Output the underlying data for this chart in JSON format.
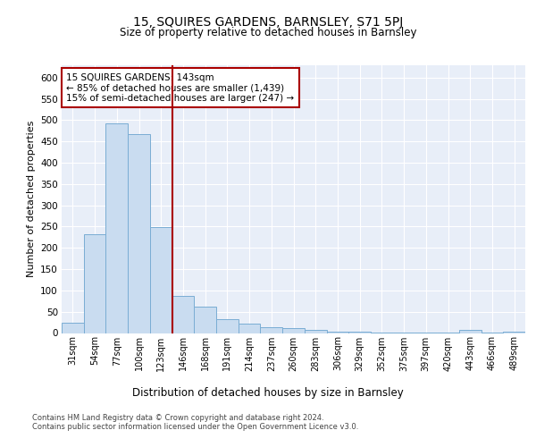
{
  "title": "15, SQUIRES GARDENS, BARNSLEY, S71 5PJ",
  "subtitle": "Size of property relative to detached houses in Barnsley",
  "xlabel": "Distribution of detached houses by size in Barnsley",
  "ylabel": "Number of detached properties",
  "bar_labels": [
    "31sqm",
    "54sqm",
    "77sqm",
    "100sqm",
    "123sqm",
    "146sqm",
    "168sqm",
    "191sqm",
    "214sqm",
    "237sqm",
    "260sqm",
    "283sqm",
    "306sqm",
    "329sqm",
    "352sqm",
    "375sqm",
    "397sqm",
    "420sqm",
    "443sqm",
    "466sqm",
    "489sqm"
  ],
  "bar_values": [
    25,
    232,
    492,
    468,
    248,
    88,
    62,
    32,
    22,
    13,
    11,
    8,
    4,
    3,
    2,
    2,
    2,
    1,
    7,
    1,
    4
  ],
  "bar_color": "#c9dcf0",
  "bar_edge_color": "#7aadd4",
  "vline_color": "#aa0000",
  "vline_pos": 4.5,
  "annotation_text": "15 SQUIRES GARDENS: 143sqm\n← 85% of detached houses are smaller (1,439)\n15% of semi-detached houses are larger (247) →",
  "annotation_box_color": "#ffffff",
  "annotation_box_edge": "#aa0000",
  "ylim": [
    0,
    630
  ],
  "yticks": [
    0,
    50,
    100,
    150,
    200,
    250,
    300,
    350,
    400,
    450,
    500,
    550,
    600
  ],
  "footer": "Contains HM Land Registry data © Crown copyright and database right 2024.\nContains public sector information licensed under the Open Government Licence v3.0.",
  "fig_bg_color": "#ffffff",
  "plot_bg_color": "#e8eef8"
}
